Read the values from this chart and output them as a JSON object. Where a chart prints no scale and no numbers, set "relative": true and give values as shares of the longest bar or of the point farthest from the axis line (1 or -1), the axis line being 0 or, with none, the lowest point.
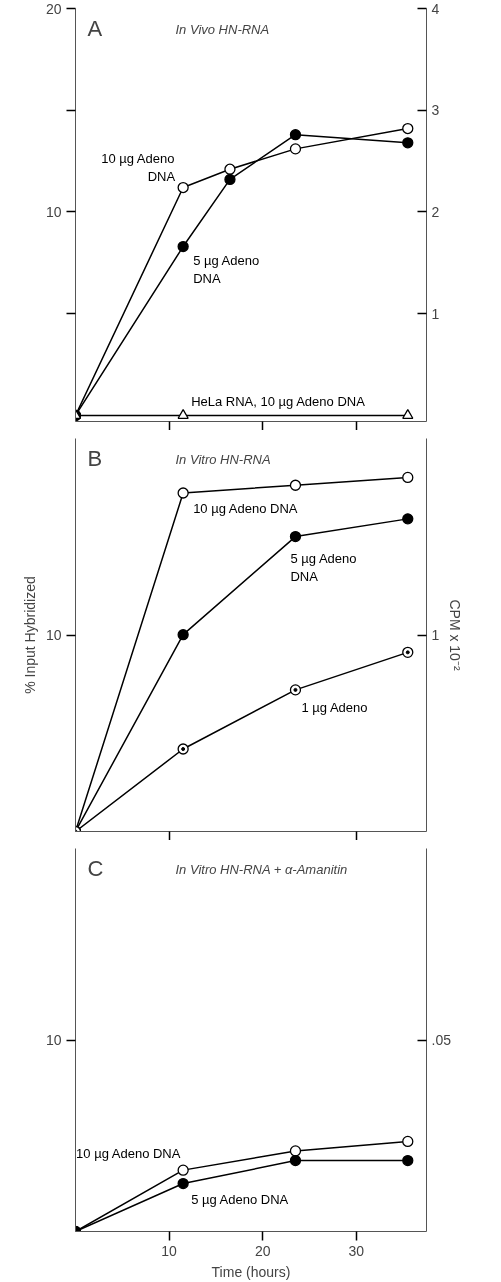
{
  "chart_data": [
    {
      "type": "line",
      "title": "A",
      "subtitle": "In Vivo HN-RNA",
      "xlim": [
        0,
        37.5
      ],
      "xticks": [
        {
          "value": 10,
          "label": null
        },
        {
          "value": 20,
          "label": null
        },
        {
          "value": 30,
          "label": null
        }
      ],
      "ylim": [
        -0.3,
        20
      ],
      "yticks": [
        {
          "value": 5,
          "label": null
        },
        10,
        {
          "value": 15,
          "label": null
        },
        20
      ],
      "y2lim": [
        -0.06,
        4
      ],
      "y2ticks": [
        1,
        2,
        3,
        4
      ],
      "tick_labels": "y",
      "marker": "circle",
      "grid": false,
      "series": [
        {
          "name": "10 µg Adeno DNA",
          "color": "#000000",
          "x": [
            0,
            11.5,
            16.5,
            23.5,
            35.5
          ],
          "values": [
            0,
            11.2,
            12.1,
            13.1,
            14.1
          ]
        },
        {
          "name": "5 µg Adeno DNA",
          "color": "#000000",
          "x": [
            0,
            11.5,
            16.5,
            23.5,
            35.5
          ],
          "values": [
            0,
            8.3,
            11.6,
            13.8,
            13.4
          ]
        },
        {
          "name": "HeLa RNA, 10 µg Adeno DNA",
          "color": "#000000",
          "marker": "triangle",
          "x": [
            0,
            11.5,
            35.5
          ],
          "values": [
            0,
            0,
            0
          ]
        }
      ]
    },
    {
      "type": "line",
      "title": "B",
      "subtitle": "In Vitro HN-RNA",
      "ylabel": "% Input Hybridized",
      "y2label": "CPM x 10⁻²",
      "relative": true,
      "annotations": [
        "10",
        "1"
      ],
      "xlim": [
        0,
        37.5
      ],
      "xticks": [
        {
          "value": 10,
          "label": null
        },
        {
          "value": 30,
          "label": null
        }
      ],
      "tick_labels": "y",
      "marker": "circle",
      "grid": false,
      "series": [
        {
          "name": "10 µg Adeno DNA",
          "color": "#000000",
          "x": [
            0,
            11.5,
            23.5,
            35.5
          ],
          "values": [
            0,
            0.956,
            0.978,
            1.0
          ]
        },
        {
          "name": "5 µg Adeno DNA",
          "color": "#000000",
          "x": [
            0,
            11.5,
            23.5,
            35.5
          ],
          "values": [
            0,
            0.556,
            0.833,
            0.883
          ]
        },
        {
          "name": "1 µg Adeno",
          "color": "#000000",
          "x": [
            0,
            11.5,
            23.5,
            35.5
          ],
          "values": [
            0,
            0.233,
            0.4,
            0.506
          ]
        }
      ]
    },
    {
      "type": "line",
      "title": "C",
      "subtitle": "In Vitro HN-RNA + α-Amanitin",
      "xlabel": "Time (hours)",
      "relative": true,
      "annotations": [
        "10",
        ".05"
      ],
      "xlim": [
        0,
        37.5
      ],
      "xticks": [
        10,
        20,
        30
      ],
      "marker": "circle",
      "grid": false,
      "series": [
        {
          "name": "10 µg Adeno DNA",
          "color": "#000000",
          "x": [
            0,
            11.5,
            23.5,
            35.5
          ],
          "values": [
            0,
            0.681,
            0.894,
            1.0
          ]
        },
        {
          "name": "5 µg Adeno DNA",
          "color": "#000000",
          "x": [
            0,
            11.5,
            23.5,
            35.5
          ],
          "values": [
            0,
            0.532,
            0.787,
            0.787
          ]
        }
      ]
    }
  ]
}
